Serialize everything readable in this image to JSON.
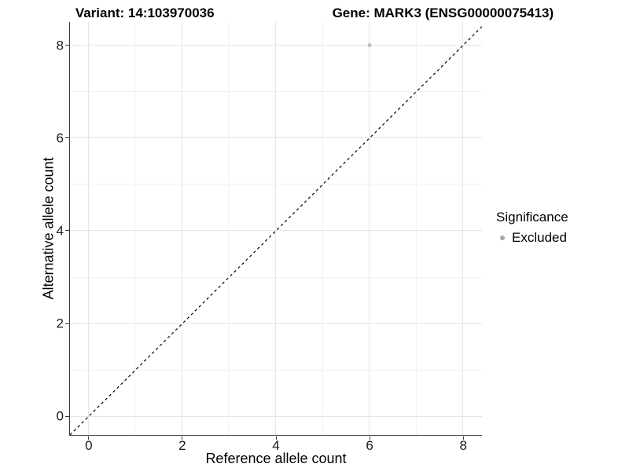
{
  "chart_data": {
    "type": "scatter",
    "title": "Variant: 14:103970036    Gene: MARK3 (ENSG00000075413)",
    "title_left": "Variant: 14:103970036",
    "title_right": "Gene: MARK3 (ENSG00000075413)",
    "xlabel": "Reference allele count",
    "ylabel": "Alternative allele count",
    "xlim": [
      -0.4,
      8.4
    ],
    "ylim": [
      -0.4,
      8.5
    ],
    "x_ticks": [
      0,
      2,
      4,
      6,
      8
    ],
    "y_ticks": [
      0,
      2,
      4,
      6,
      8
    ],
    "x_minor_gridlines": [
      1,
      3,
      5,
      7
    ],
    "y_minor_gridlines": [
      1,
      3,
      5,
      7
    ],
    "grid": "major and minor gridlines, light grey on white",
    "points": [
      {
        "x": 6,
        "y": 8,
        "significance": "Excluded"
      }
    ],
    "identity_line": {
      "shape": "y = x",
      "style": "dashed",
      "color": "#000000",
      "from": [
        -0.4,
        -0.4
      ],
      "to": [
        8.4,
        8.4
      ]
    },
    "legend": {
      "title": "Significance",
      "position": "right",
      "entries": [
        {
          "label": "Excluded",
          "marker": "circle",
          "color": "#a8a8a8"
        }
      ]
    },
    "colors": {
      "point": "#c0c0c0",
      "grid_major": "#e6e6e6",
      "grid_minor": "#f2f2f2",
      "axis_line": "#333333",
      "tick_text": "#1a1a1a",
      "text": "#000000"
    }
  }
}
